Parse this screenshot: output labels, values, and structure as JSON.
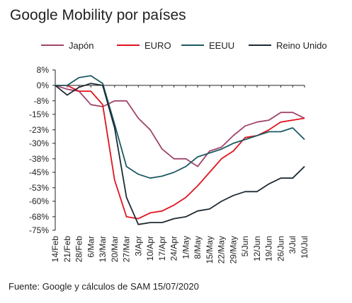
{
  "chart_data": {
    "type": "line",
    "title": "Google Mobility por países",
    "source": "Fuente: Google y cálculos de SAM 15/07/2020",
    "xlabel": "",
    "ylabel": "",
    "ylim": [
      -75,
      8
    ],
    "ytick_labels": [
      "8%",
      "0%",
      "-8%",
      "-15%",
      "-23%",
      "-30%",
      "-38%",
      "-45%",
      "-53%",
      "-60%",
      "-68%",
      "-75%"
    ],
    "ytick_values": [
      8,
      0,
      -8,
      -15,
      -23,
      -30,
      -38,
      -45,
      -53,
      -60,
      -68,
      -75
    ],
    "xtick_labels": [
      "14/Feb",
      "21/Feb",
      "28/Feb",
      "6/Mar",
      "13/Mar",
      "20/Mar",
      "27/Mar",
      "3/Apr",
      "10/Apr",
      "17/Apr",
      "24/Apr",
      "1/May",
      "8/May",
      "15/May",
      "22/May",
      "29/May",
      "5/Jun",
      "12/Jun",
      "19/Jun",
      "26/Jun",
      "3/Jul",
      "10/Jul"
    ],
    "x": [
      "14/Feb",
      "21/Feb",
      "28/Feb",
      "6/Mar",
      "13/Mar",
      "20/Mar",
      "27/Mar",
      "3/Apr",
      "10/Apr",
      "17/Apr",
      "24/Apr",
      "1/May",
      "8/May",
      "15/May",
      "22/May",
      "29/May",
      "5/Jun",
      "12/Jun",
      "19/Jun",
      "26/Jun",
      "3/Jul",
      "10/Jul"
    ],
    "grid": false,
    "legend_position": "top",
    "series": [
      {
        "name": "Japón",
        "color": "#a0446c",
        "values": [
          0,
          -2,
          -3,
          -10,
          -11,
          -8,
          -8,
          -17,
          -23,
          -33,
          -38,
          -38,
          -42,
          -34,
          -32,
          -26,
          -21,
          -19,
          -18,
          -14,
          -14,
          -17
        ]
      },
      {
        "name": "EURO",
        "color": "#e0141e",
        "values": [
          0,
          0,
          -3,
          -3,
          -10,
          -49,
          -68,
          -69,
          -66,
          -65,
          -62,
          -58,
          -52,
          -45,
          -38,
          -34,
          -27,
          -26,
          -23,
          -19,
          -18,
          -17
        ]
      },
      {
        "name": "EEUU",
        "color": "#1c5a64",
        "values": [
          0,
          0,
          4,
          5,
          1,
          -20,
          -42,
          -46,
          -48,
          -47,
          -45,
          -42,
          -37,
          -35,
          -33,
          -30,
          -28,
          -26,
          -24,
          -24,
          -22,
          -28
        ]
      },
      {
        "name": "Reino Unido",
        "color": "#1e2a33",
        "values": [
          0,
          -5,
          -1,
          1,
          0,
          -22,
          -58,
          -72,
          -71,
          -71,
          -69,
          -68,
          -65,
          -64,
          -60,
          -57,
          -55,
          -55,
          -51,
          -48,
          -48,
          -42
        ]
      }
    ]
  }
}
